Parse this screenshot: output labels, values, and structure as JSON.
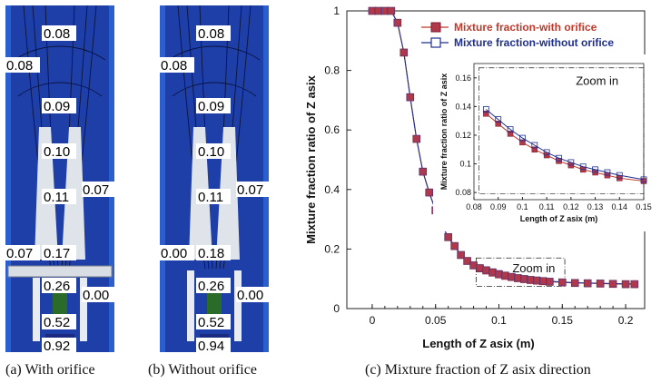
{
  "figure": {
    "panel_a": {
      "caption": "(a) With orifice",
      "labels": [
        "0.08",
        "0.08",
        "0.09",
        "0.10",
        "0.11",
        "0.07",
        "0.07",
        "0.17",
        "0.26",
        "0.00",
        "0.52",
        "0.92"
      ]
    },
    "panel_b": {
      "caption": "(b) Without orifice",
      "labels": [
        "0.08",
        "0.08",
        "0.09",
        "0.10",
        "0.11",
        "0.07",
        "0.00",
        "0.18",
        "0.26",
        "0.00",
        "0.52",
        "0.94"
      ]
    },
    "panel_c": {
      "caption": "(c) Mixture fraction of Z asix direction"
    }
  },
  "colors": {
    "with_orifice": "#c0392b",
    "without_orifice": "#1f2f8f",
    "contour_bg": "#1f3fa8"
  },
  "chart_data": {
    "type": "line",
    "xlabel": "Length of Z asix (m)",
    "ylabel": "Mixture fraction ratio of Z asix",
    "xlim": [
      -0.02,
      0.215
    ],
    "ylim": [
      0,
      1
    ],
    "xticks": [
      "0",
      "0.05",
      "0.1",
      "0.15",
      "0.2"
    ],
    "yticks": [
      "0",
      "0.2",
      "0.4",
      "0.6",
      "0.8",
      "1"
    ],
    "zoom_label": "Zoom in",
    "legend": "top-right",
    "series": [
      {
        "name": "Mixture fraction-with orifice",
        "marker": "filled-square",
        "x": [
          0,
          0.005,
          0.01,
          0.015,
          0.02,
          0.025,
          0.03,
          0.035,
          0.04,
          0.045,
          0.05,
          0.055,
          0.06,
          0.065,
          0.07,
          0.075,
          0.08,
          0.085,
          0.09,
          0.095,
          0.1,
          0.105,
          0.11,
          0.115,
          0.12,
          0.125,
          0.13,
          0.135,
          0.14,
          0.15,
          0.16,
          0.17,
          0.18,
          0.19,
          0.2,
          0.207
        ],
        "y": [
          1,
          1,
          1,
          1,
          0.96,
          0.86,
          0.71,
          0.57,
          0.46,
          0.39,
          0.33,
          0.28,
          0.24,
          0.21,
          0.18,
          0.16,
          0.145,
          0.135,
          0.128,
          0.121,
          0.115,
          0.11,
          0.106,
          0.102,
          0.099,
          0.096,
          0.094,
          0.092,
          0.09,
          0.088,
          0.086,
          0.085,
          0.084,
          0.083,
          0.082,
          0.082
        ]
      },
      {
        "name": "Mixture fraction-without orifice",
        "marker": "open-square",
        "x": [
          0,
          0.005,
          0.01,
          0.015,
          0.02,
          0.025,
          0.03,
          0.035,
          0.04,
          0.045,
          0.05,
          0.055,
          0.06,
          0.065,
          0.07,
          0.075,
          0.08,
          0.085,
          0.09,
          0.095,
          0.1,
          0.105,
          0.11,
          0.115,
          0.12,
          0.125,
          0.13,
          0.135,
          0.14,
          0.15,
          0.16,
          0.17,
          0.18,
          0.19,
          0.2,
          0.207
        ],
        "y": [
          1,
          1,
          1,
          1,
          0.96,
          0.86,
          0.71,
          0.57,
          0.46,
          0.39,
          0.33,
          0.28,
          0.24,
          0.21,
          0.18,
          0.16,
          0.147,
          0.138,
          0.131,
          0.124,
          0.118,
          0.113,
          0.108,
          0.104,
          0.101,
          0.098,
          0.096,
          0.094,
          0.092,
          0.089,
          0.087,
          0.086,
          0.085,
          0.084,
          0.083,
          0.083
        ]
      }
    ],
    "inset": {
      "xlabel": "Length of Z asix (m)",
      "ylabel": "Mixture fraction ratio of Z asix",
      "xlim": [
        0.08,
        0.15
      ],
      "ylim": [
        0.075,
        0.17
      ],
      "xticks": [
        "0.08",
        "0.09",
        "0.1",
        "0.11",
        "0.12",
        "0.13",
        "0.14",
        "0.15"
      ],
      "yticks": [
        "0.08",
        "0.1",
        "0.12",
        "0.14",
        "0.16"
      ],
      "label": "Zoom in",
      "with_orifice": {
        "x": [
          0.085,
          0.09,
          0.095,
          0.1,
          0.105,
          0.11,
          0.115,
          0.12,
          0.125,
          0.13,
          0.135,
          0.14,
          0.15
        ],
        "y": [
          0.135,
          0.128,
          0.121,
          0.115,
          0.11,
          0.106,
          0.102,
          0.099,
          0.096,
          0.094,
          0.092,
          0.09,
          0.088
        ]
      },
      "without_orifice": {
        "x": [
          0.085,
          0.09,
          0.095,
          0.1,
          0.105,
          0.11,
          0.115,
          0.12,
          0.125,
          0.13,
          0.135,
          0.14,
          0.15
        ],
        "y": [
          0.138,
          0.131,
          0.124,
          0.118,
          0.113,
          0.108,
          0.104,
          0.101,
          0.098,
          0.096,
          0.094,
          0.092,
          0.089
        ]
      }
    }
  }
}
